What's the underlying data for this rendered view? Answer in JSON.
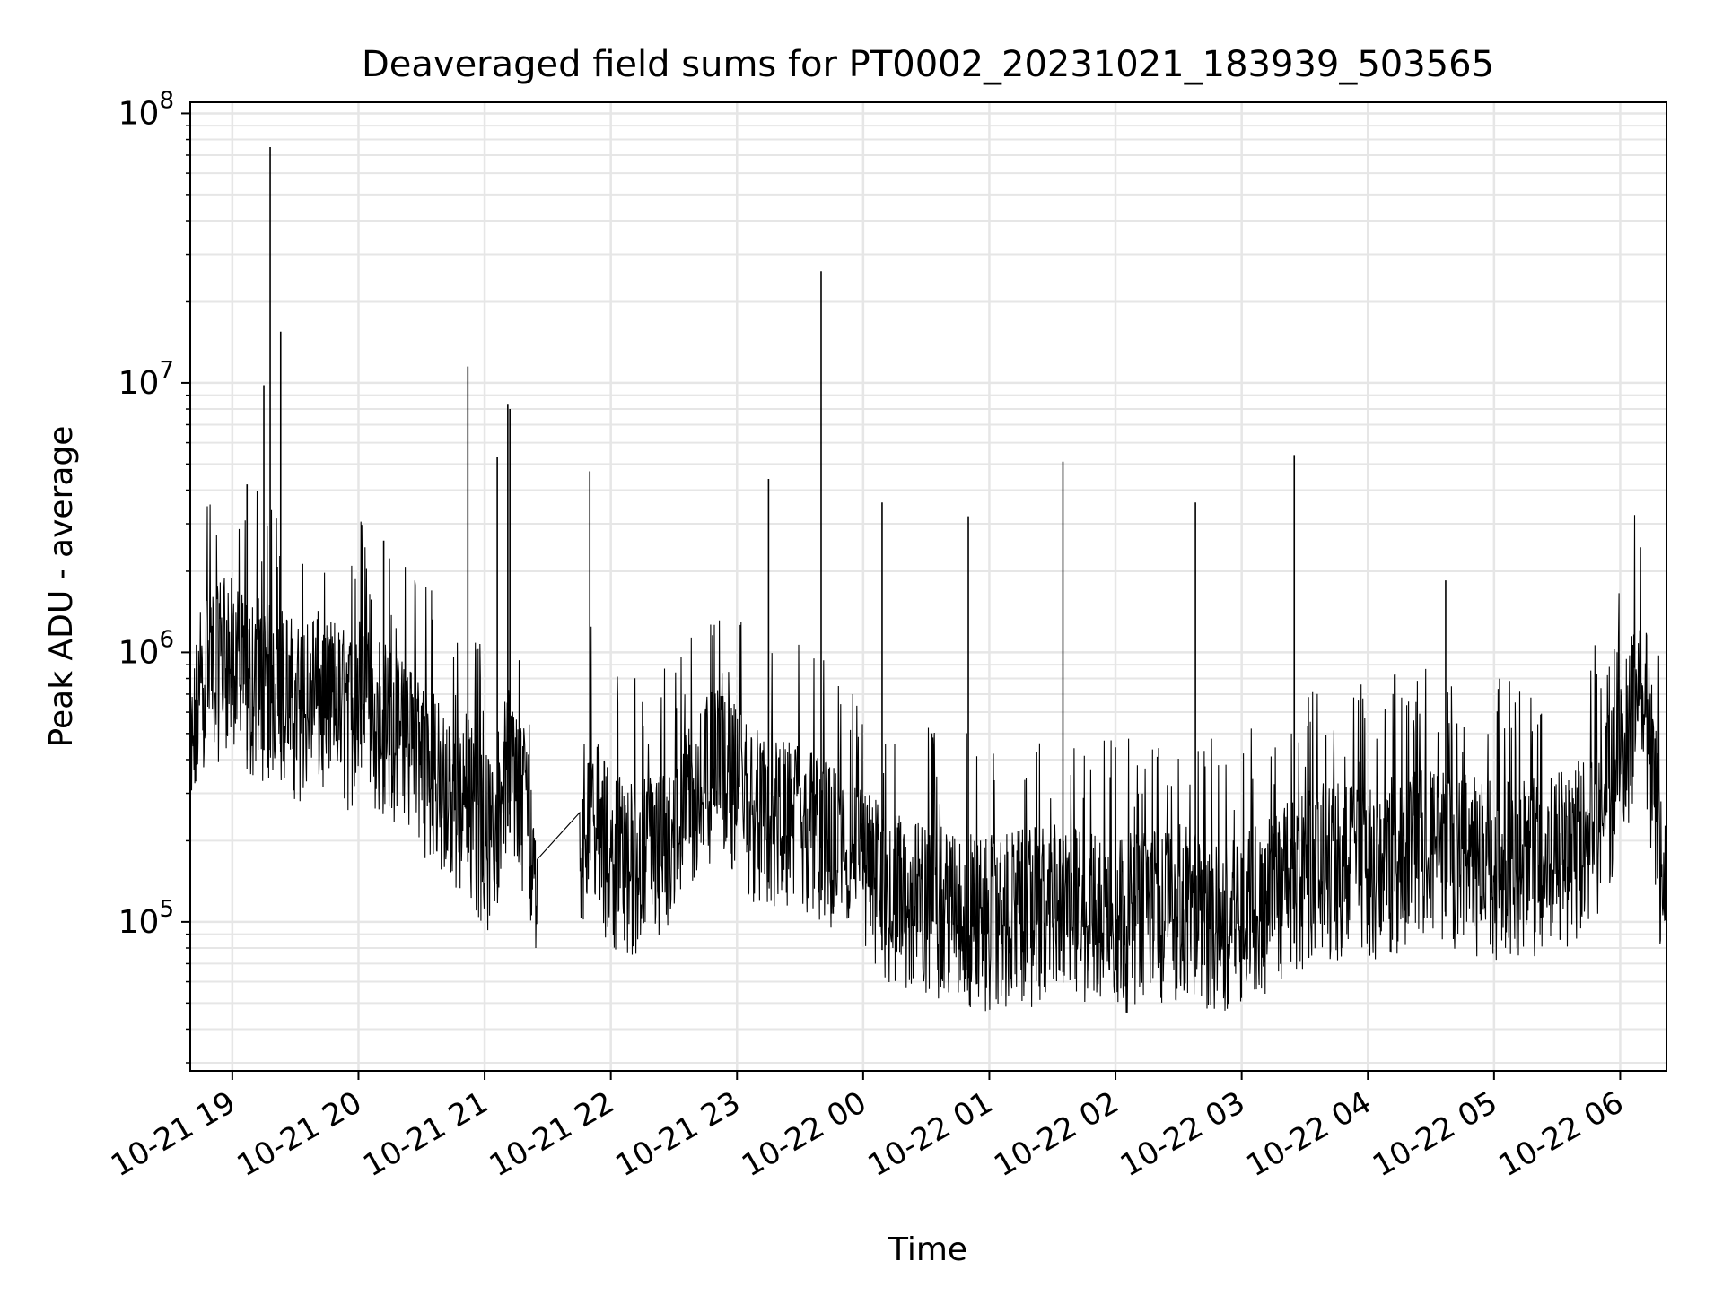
{
  "chart_data": {
    "type": "line",
    "title": "Deaveraged field sums for PT0002_20231021_183939_503565",
    "xlabel": "Time",
    "ylabel": "Peak ADU - average",
    "yscale": "log",
    "ylim": [
      28000,
      110000000
    ],
    "xlim": [
      "2023-10-21 18:40",
      "2023-10-22 06:22"
    ],
    "grid": true,
    "line_color": "#000000",
    "grid_color": "#e6e6e6",
    "x_ticks": [
      {
        "value": "2023-10-21 19:00",
        "label": "10-21 19"
      },
      {
        "value": "2023-10-21 20:00",
        "label": "10-21 20"
      },
      {
        "value": "2023-10-21 21:00",
        "label": "10-21 21"
      },
      {
        "value": "2023-10-21 22:00",
        "label": "10-21 22"
      },
      {
        "value": "2023-10-21 23:00",
        "label": "10-21 23"
      },
      {
        "value": "2023-10-22 00:00",
        "label": "10-22 00"
      },
      {
        "value": "2023-10-22 01:00",
        "label": "10-22 01"
      },
      {
        "value": "2023-10-22 02:00",
        "label": "10-22 02"
      },
      {
        "value": "2023-10-22 03:00",
        "label": "10-22 03"
      },
      {
        "value": "2023-10-22 04:00",
        "label": "10-22 04"
      },
      {
        "value": "2023-10-22 05:00",
        "label": "10-22 05"
      },
      {
        "value": "2023-10-22 06:00",
        "label": "10-22 06"
      }
    ],
    "y_ticks": [
      {
        "value": 100000,
        "base": "10",
        "exp": "5"
      },
      {
        "value": 1000000,
        "base": "10",
        "exp": "6"
      },
      {
        "value": 10000000,
        "base": "10",
        "exp": "7"
      },
      {
        "value": 100000000,
        "base": "10",
        "exp": "8"
      }
    ],
    "series": [
      {
        "x": [
          "2023-10-21 18:40",
          "2023-10-21 18:44",
          "2023-10-21 18:48",
          "2023-10-21 18:52",
          "2023-10-21 18:56",
          "2023-10-21 19:00",
          "2023-10-21 19:04",
          "2023-10-21 19:08",
          "2023-10-21 19:12",
          "2023-10-21 19:16",
          "2023-10-21 19:20",
          "2023-10-21 19:24",
          "2023-10-21 19:28",
          "2023-10-21 19:32",
          "2023-10-21 19:36",
          "2023-10-21 19:40",
          "2023-10-21 19:44",
          "2023-10-21 19:48",
          "2023-10-21 19:52",
          "2023-10-21 19:56",
          "2023-10-21 20:00",
          "2023-10-21 20:05",
          "2023-10-21 20:10",
          "2023-10-21 20:15",
          "2023-10-21 20:20",
          "2023-10-21 20:25",
          "2023-10-21 20:30",
          "2023-10-21 20:35",
          "2023-10-21 20:40",
          "2023-10-21 20:45",
          "2023-10-21 20:50",
          "2023-10-21 20:55",
          "2023-10-21 21:00",
          "2023-10-21 21:05",
          "2023-10-21 21:10",
          "2023-10-21 21:15",
          "2023-10-21 21:20",
          "2023-10-21 21:25",
          "2023-10-21 21:45",
          "2023-10-21 21:50",
          "2023-10-21 21:55",
          "2023-10-21 22:00",
          "2023-10-21 22:10",
          "2023-10-21 22:20",
          "2023-10-21 22:30",
          "2023-10-21 22:40",
          "2023-10-21 22:50",
          "2023-10-21 23:00",
          "2023-10-21 23:10",
          "2023-10-21 23:20",
          "2023-10-21 23:30",
          "2023-10-21 23:40",
          "2023-10-21 23:50",
          "2023-10-22 00:00",
          "2023-10-22 00:15",
          "2023-10-22 00:30",
          "2023-10-22 00:45",
          "2023-10-22 01:00",
          "2023-10-22 01:15",
          "2023-10-22 01:30",
          "2023-10-22 01:45",
          "2023-10-22 02:00",
          "2023-10-22 02:15",
          "2023-10-22 02:30",
          "2023-10-22 02:45",
          "2023-10-22 03:00",
          "2023-10-22 03:15",
          "2023-10-22 03:30",
          "2023-10-22 03:45",
          "2023-10-22 04:00",
          "2023-10-22 04:15",
          "2023-10-22 04:30",
          "2023-10-22 04:45",
          "2023-10-22 05:00",
          "2023-10-22 05:15",
          "2023-10-22 05:30",
          "2023-10-22 05:45",
          "2023-10-22 06:00",
          "2023-10-22 06:10",
          "2023-10-22 06:22"
        ],
        "y": [
          300000,
          700000,
          900000,
          800000,
          1000000,
          900000,
          800000,
          700000,
          800000,
          700000,
          750000,
          700000,
          650000,
          600000,
          650000,
          700000,
          600000,
          650000,
          600000,
          550000,
          650000,
          600000,
          550000,
          500000,
          450000,
          500000,
          400000,
          350000,
          300000,
          250000,
          300000,
          250000,
          200000,
          200000,
          400000,
          300000,
          250000,
          130000,
          190000,
          300000,
          200000,
          180000,
          160000,
          170000,
          200000,
          300000,
          350000,
          300000,
          250000,
          220000,
          230000,
          200000,
          170000,
          150000,
          120000,
          110000,
          105000,
          100000,
          105000,
          110000,
          105000,
          100000,
          105000,
          110000,
          100000,
          105000,
          120000,
          150000,
          160000,
          150000,
          170000,
          180000,
          170000,
          160000,
          160000,
          170000,
          200000,
          350000,
          900000,
          100000
        ]
      }
    ],
    "spikes": [
      {
        "x": "2023-10-21 19:07",
        "y": 4200000
      },
      {
        "x": "2023-10-21 19:15",
        "y": 9800000
      },
      {
        "x": "2023-10-21 19:18",
        "y": 75000000
      },
      {
        "x": "2023-10-21 19:23",
        "y": 15500000
      },
      {
        "x": "2023-10-21 20:12",
        "y": 2600000
      },
      {
        "x": "2023-10-21 20:52",
        "y": 11500000
      },
      {
        "x": "2023-10-21 21:06",
        "y": 5300000
      },
      {
        "x": "2023-10-21 21:11",
        "y": 8300000
      },
      {
        "x": "2023-10-21 21:12",
        "y": 8000000
      },
      {
        "x": "2023-10-21 21:50",
        "y": 4700000
      },
      {
        "x": "2023-10-21 23:15",
        "y": 4400000
      },
      {
        "x": "2023-10-21 23:40",
        "y": 26000000
      },
      {
        "x": "2023-10-22 00:09",
        "y": 3600000
      },
      {
        "x": "2023-10-22 00:50",
        "y": 3200000
      },
      {
        "x": "2023-10-22 01:35",
        "y": 5100000
      },
      {
        "x": "2023-10-22 02:38",
        "y": 3600000
      },
      {
        "x": "2023-10-22 03:25",
        "y": 5400000
      },
      {
        "x": "2023-10-22 04:37",
        "y": 1850000
      }
    ]
  }
}
